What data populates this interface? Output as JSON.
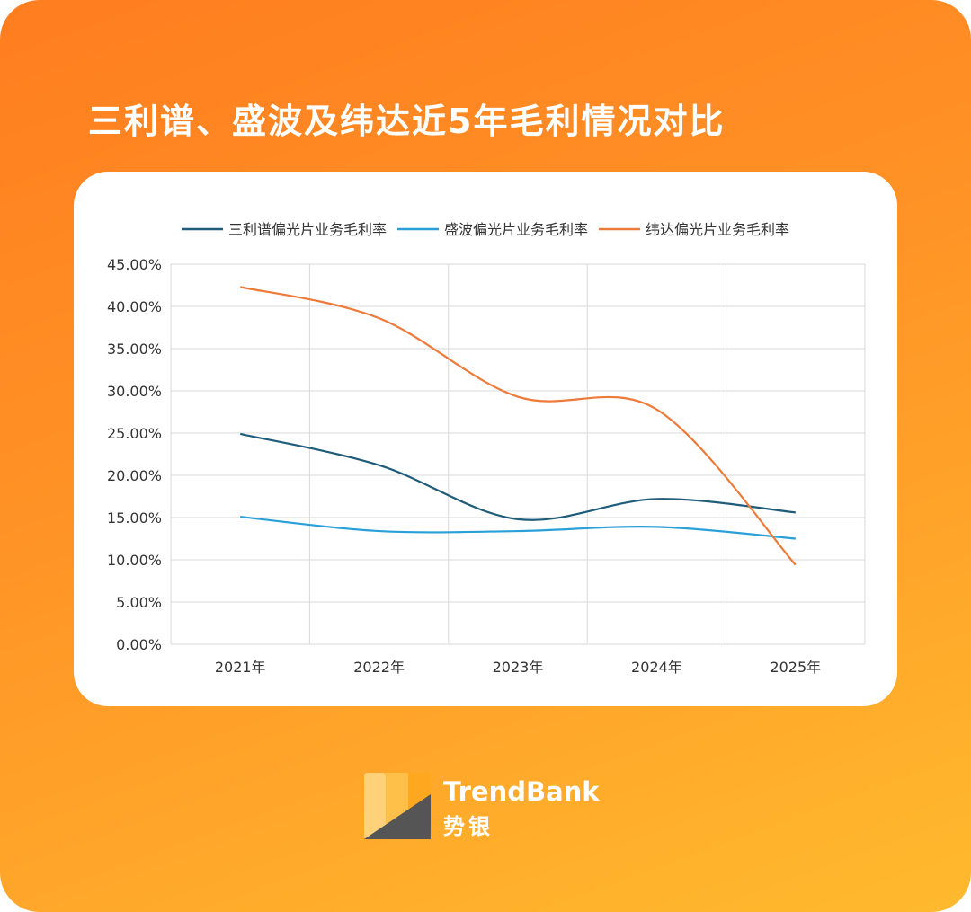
{
  "page": {
    "title": "三利谱、盛波及纬达近5年毛利情况对比"
  },
  "logo": {
    "name_en": "TrendBank",
    "name_cn": "势银",
    "colors": [
      "#ffd27a",
      "#ffc04a",
      "#555555"
    ]
  },
  "chart_data": {
    "type": "line",
    "title": "",
    "xlabel": "",
    "ylabel": "",
    "categories": [
      "2021年",
      "2022年",
      "2023年",
      "2024年",
      "2025年"
    ],
    "ylim": [
      0,
      0.45
    ],
    "yticks": [
      0,
      0.05,
      0.1,
      0.15,
      0.2,
      0.25,
      0.3,
      0.35,
      0.4,
      0.45
    ],
    "ytick_labels": [
      "0.00%",
      "5.00%",
      "10.00%",
      "15.00%",
      "20.00%",
      "25.00%",
      "30.00%",
      "35.00%",
      "40.00%",
      "45.00%"
    ],
    "grid": true,
    "legend_position": "top",
    "smooth": true,
    "series": [
      {
        "name": "三利谱偏光片业务毛利率",
        "color": "#1f5c7a",
        "values": [
          0.249,
          0.212,
          0.148,
          0.172,
          0.156
        ]
      },
      {
        "name": "盛波偏光片业务毛利率",
        "color": "#2aa0d8",
        "values": [
          0.151,
          0.134,
          0.134,
          0.139,
          0.125
        ]
      },
      {
        "name": "纬达偏光片业务毛利率",
        "color": "#ee7a3a",
        "values": [
          0.423,
          0.386,
          0.293,
          0.278,
          0.094
        ]
      }
    ]
  }
}
